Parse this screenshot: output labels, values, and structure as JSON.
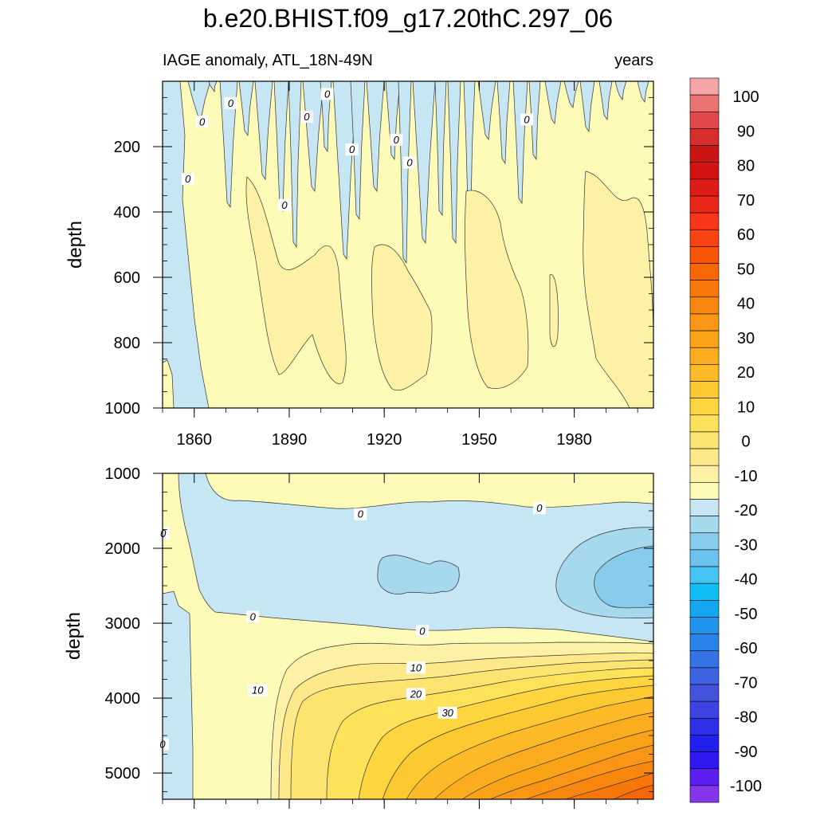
{
  "title": "b.e20.BHIST.f09_g17.20thC.297_06",
  "colors": {
    "neg": [
      "#c6e6f4",
      "#a6d8ee",
      "#87ccea",
      "#6cc3ef",
      "#45c4f4",
      "#0fbef5",
      "#14a6ef",
      "#1e94ee",
      "#2a83ea",
      "#3472e6",
      "#3d62e2",
      "#4453dc",
      "#3e44e1",
      "#2f2fe8",
      "#2220ee",
      "#2f18f2",
      "#5c1ff0",
      "#8534ea"
    ],
    "pos": [
      "#fefab8",
      "#fdf1a6",
      "#fde98a",
      "#fde470",
      "#fde25a",
      "#fdd53e",
      "#fdc931",
      "#fdbb2a",
      "#fcac1f",
      "#fba316",
      "#fa9516",
      "#f9860e",
      "#f97609",
      "#f86606",
      "#f85407",
      "#f74410",
      "#f9351a",
      "#ea2618",
      "#de1b16",
      "#d21414",
      "#cb1515",
      "#d52e2d",
      "#e2494a",
      "#eb7273",
      "#f5a5a5"
    ]
  },
  "charts": [
    {
      "id": "upper",
      "subtitle_left": "IAGE anomaly, ATL_18N-49N",
      "subtitle_right": "years",
      "ylabel": "depth",
      "ylim": [
        0,
        1000
      ],
      "xlim": [
        1850,
        2005
      ],
      "yticks": [
        200,
        400,
        600,
        800,
        1000
      ],
      "ytick_labels": [
        "200",
        "400",
        "600",
        "800",
        "1000"
      ],
      "xticks": [
        1860,
        1890,
        1920,
        1950,
        1980
      ],
      "xtick_labels": [
        "1860",
        "1890",
        "1920",
        "1950",
        "1980"
      ],
      "contour_labels": [
        {
          "year": 1871.5,
          "depth": 68,
          "text": "0"
        },
        {
          "year": 1862.5,
          "depth": 125,
          "text": "0"
        },
        {
          "year": 1895.5,
          "depth": 110,
          "text": "0"
        },
        {
          "year": 1902,
          "depth": 40,
          "text": "0"
        },
        {
          "year": 1909.8,
          "depth": 210,
          "text": "0"
        },
        {
          "year": 1923.8,
          "depth": 180,
          "text": "0"
        },
        {
          "year": 1928,
          "depth": 250,
          "text": "0"
        },
        {
          "year": 1965,
          "depth": 118,
          "text": "0"
        },
        {
          "year": 1858,
          "depth": 300,
          "text": "0"
        },
        {
          "year": 1888.5,
          "depth": 380,
          "text": "0"
        }
      ]
    },
    {
      "id": "lower",
      "subtitle_left": "",
      "subtitle_right": "",
      "ylabel": "depth",
      "ylim": [
        1000,
        5350
      ],
      "xlim": [
        1850,
        2005
      ],
      "yticks": [
        1000,
        2000,
        3000,
        4000,
        5000
      ],
      "ytick_labels": [
        "1000",
        "2000",
        "3000",
        "4000",
        "5000"
      ],
      "xticks": [
        1860,
        1890,
        1920,
        1950,
        1980
      ],
      "xtick_labels": [],
      "contour_labels": [
        {
          "year": 1912.5,
          "depth": 1550,
          "text": "0"
        },
        {
          "year": 1969,
          "depth": 1470,
          "text": "0"
        },
        {
          "year": 1850.2,
          "depth": 1810,
          "text": "0"
        },
        {
          "year": 1878.5,
          "depth": 2920,
          "text": "0"
        },
        {
          "year": 1932,
          "depth": 3110,
          "text": "0"
        },
        {
          "year": 1930,
          "depth": 3600,
          "text": "10"
        },
        {
          "year": 1880,
          "depth": 3900,
          "text": "10"
        },
        {
          "year": 1930,
          "depth": 3950,
          "text": "20"
        },
        {
          "year": 1940,
          "depth": 4200,
          "text": "30"
        },
        {
          "year": 1850,
          "depth": 4620,
          "text": "0"
        }
      ]
    }
  ],
  "colorbar": {
    "labels": [
      "100",
      "90",
      "80",
      "70",
      "60",
      "50",
      "40",
      "30",
      "20",
      "10",
      "0",
      "-10",
      "-20",
      "-30",
      "-40",
      "-50",
      "-60",
      "-70",
      "-80",
      "-90",
      "-100"
    ]
  }
}
